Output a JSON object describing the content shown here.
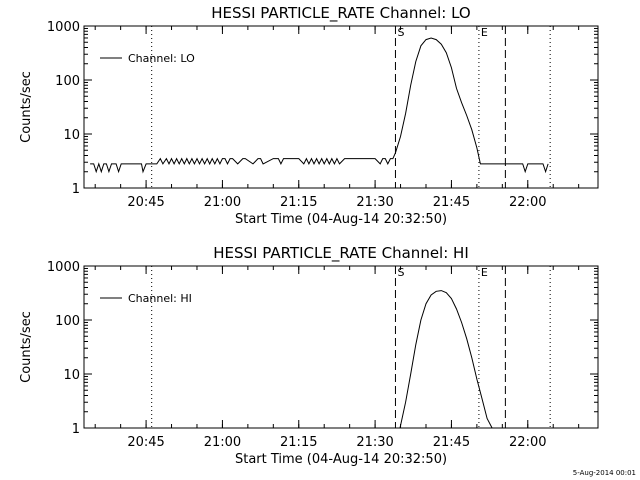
{
  "footer": "5-Aug-2014 00:01",
  "chart_data": [
    {
      "type": "line",
      "title": "HESSI PARTICLE_RATE Channel: LO",
      "xlabel": "Start Time (04-Aug-14 20:32:50)",
      "ylabel": "Counts/sec",
      "x_unit": "minutes after 20:32:50",
      "y_scale": "log",
      "ylim": [
        1,
        1000
      ],
      "xlim": [
        0,
        101
      ],
      "x_ticks": [
        12.2,
        27.2,
        42.2,
        57.2,
        72.2,
        87.2
      ],
      "x_tick_labels": [
        "20:45",
        "21:00",
        "21:15",
        "21:30",
        "21:45",
        "22:00"
      ],
      "y_ticks": [
        1,
        10,
        100,
        1000
      ],
      "y_tick_labels": [
        "1",
        "10",
        "100",
        "1000"
      ],
      "grid": false,
      "legend": {
        "position": "top-left",
        "entries": [
          "Channel: LO"
        ]
      },
      "annotations": [
        {
          "label": "S",
          "x": 61.2,
          "style": "dashed"
        },
        {
          "label": "E",
          "x": 77.6,
          "style": "dotted"
        }
      ],
      "markers": [
        {
          "x": 13.3,
          "style": "dotted"
        },
        {
          "x": 82.8,
          "style": "dashed"
        },
        {
          "x": 91.6,
          "style": "dotted"
        }
      ],
      "series": [
        {
          "name": "Channel: LO",
          "x": [
            1.2,
            1.9,
            2.4,
            2.9,
            3.4,
            3.9,
            4.4,
            4.9,
            5.4,
            6.3,
            6.8,
            7.3,
            8.3,
            9.8,
            11.3,
            11.6,
            12.2,
            14.3,
            15.0,
            15.5,
            16.2,
            16.7,
            17.2,
            17.7,
            18.2,
            18.7,
            19.2,
            19.7,
            20.2,
            20.7,
            21.2,
            21.7,
            22.2,
            22.7,
            23.2,
            23.7,
            24.2,
            24.7,
            25.2,
            25.7,
            26.2,
            26.7,
            27.2,
            27.7,
            28.2,
            28.7,
            29.2,
            30.2,
            31.2,
            31.7,
            33.2,
            34.2,
            34.7,
            35.2,
            37.2,
            38.2,
            38.7,
            39.2,
            41.2,
            42.2,
            43.2,
            43.7,
            44.2,
            44.7,
            45.2,
            45.7,
            46.2,
            46.7,
            47.2,
            47.7,
            48.2,
            48.7,
            49.2,
            49.7,
            50.2,
            51.2,
            52.2,
            53.2,
            54.2,
            55.2,
            56.2,
            57.2,
            58.2,
            58.7,
            59.2,
            59.7,
            60.2,
            60.7,
            61.2,
            62.2,
            63.2,
            64.2,
            65.2,
            66.2,
            67.2,
            68.2,
            69.2,
            70.2,
            71.2,
            72.2,
            73.2,
            74.2,
            75.2,
            76.2,
            77.2,
            77.9,
            78.7,
            79.2,
            79.7,
            80.2,
            80.7,
            81.2,
            82.2,
            83.2,
            85.2,
            86.2,
            86.7,
            87.2,
            87.7,
            88.2,
            89.2,
            90.2,
            90.7,
            91.2
          ],
          "values": [
            2.8,
            2.8,
            2.0,
            2.8,
            2.0,
            2.8,
            2.8,
            2.0,
            2.8,
            2.8,
            2.0,
            2.8,
            2.8,
            2.8,
            2.8,
            2.0,
            2.8,
            2.8,
            3.5,
            2.8,
            3.5,
            2.8,
            3.5,
            2.8,
            3.5,
            2.8,
            3.5,
            2.8,
            3.5,
            2.8,
            3.5,
            2.8,
            3.5,
            2.8,
            3.5,
            2.8,
            3.5,
            2.8,
            3.5,
            2.8,
            3.5,
            2.8,
            3.5,
            3.5,
            2.8,
            3.5,
            3.5,
            2.8,
            3.5,
            3.5,
            2.8,
            3.5,
            3.5,
            2.8,
            3.5,
            3.5,
            2.8,
            3.5,
            3.5,
            3.5,
            2.8,
            3.5,
            2.8,
            3.5,
            2.8,
            3.5,
            2.8,
            3.5,
            2.8,
            3.5,
            2.8,
            3.5,
            2.8,
            3.5,
            2.8,
            3.5,
            3.5,
            3.5,
            3.5,
            3.5,
            3.5,
            3.5,
            2.8,
            3.5,
            3.5,
            2.8,
            3.5,
            3.5,
            4.5,
            9,
            24,
            80,
            220,
            430,
            560,
            600,
            560,
            460,
            320,
            170,
            70,
            38,
            22,
            12,
            5.5,
            2.8,
            2.8,
            2.8,
            2.8,
            2.8,
            2.8,
            2.8,
            2.8,
            2.8,
            2.8,
            2.8,
            2.0,
            2.8,
            2.8,
            2.8,
            2.8,
            2.8,
            2.0,
            2.8
          ]
        }
      ]
    },
    {
      "type": "line",
      "title": "HESSI PARTICLE_RATE Channel: HI",
      "xlabel": "Start Time (04-Aug-14 20:32:50)",
      "ylabel": "Counts/sec",
      "x_unit": "minutes after 20:32:50",
      "y_scale": "log",
      "ylim": [
        1,
        1000
      ],
      "xlim": [
        0,
        101
      ],
      "x_ticks": [
        12.2,
        27.2,
        42.2,
        57.2,
        72.2,
        87.2
      ],
      "x_tick_labels": [
        "20:45",
        "21:00",
        "21:15",
        "21:30",
        "21:45",
        "22:00"
      ],
      "y_ticks": [
        1,
        10,
        100,
        1000
      ],
      "y_tick_labels": [
        "1",
        "10",
        "100",
        "1000"
      ],
      "grid": false,
      "legend": {
        "position": "top-left",
        "entries": [
          "Channel: HI"
        ]
      },
      "annotations": [
        {
          "label": "S",
          "x": 61.2,
          "style": "dashed"
        },
        {
          "label": "E",
          "x": 77.6,
          "style": "dotted"
        }
      ],
      "markers": [
        {
          "x": 13.3,
          "style": "dotted"
        },
        {
          "x": 82.8,
          "style": "dashed"
        },
        {
          "x": 91.6,
          "style": "dotted"
        }
      ],
      "series": [
        {
          "name": "Channel: HI",
          "x": [
            62.1,
            63.2,
            64.2,
            65.2,
            66.2,
            67.2,
            68.2,
            69.2,
            70.2,
            71.2,
            72.2,
            73.2,
            74.2,
            75.2,
            76.2,
            77.2,
            78.2,
            79.2,
            80.2
          ],
          "values": [
            1,
            3,
            10,
            35,
            100,
            200,
            290,
            340,
            350,
            320,
            250,
            160,
            90,
            45,
            20,
            8,
            3.5,
            1.5,
            1
          ]
        }
      ]
    }
  ]
}
